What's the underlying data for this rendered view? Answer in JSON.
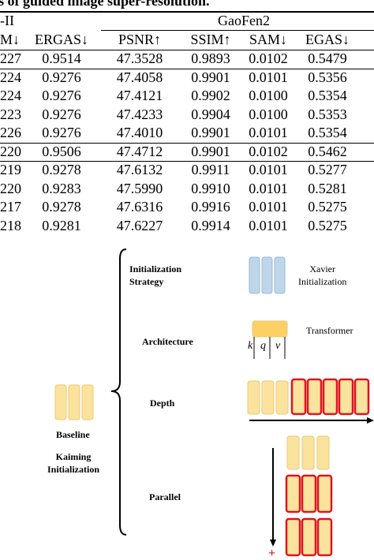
{
  "caption": "s of guided image super-resolution.",
  "table": {
    "left_group_label": "-II",
    "right_group_label": "GaoFen2",
    "headers": [
      "M↓",
      "ERGAS↓",
      "PSNR↑",
      "SSIM↑",
      "SAM↓",
      "EGAS↓"
    ],
    "groups": [
      [
        [
          "227",
          "0.9514",
          "47.3528",
          "0.9893",
          "0.0102",
          "0.5479"
        ]
      ],
      [
        [
          "224",
          "0.9276",
          "47.4058",
          "0.9901",
          "0.0101",
          "0.5356"
        ],
        [
          "224",
          "0.9276",
          "47.4121",
          "0.9902",
          "0.0100",
          "0.5354"
        ],
        [
          "223",
          "0.9276",
          "47.4233",
          "0.9904",
          "0.0100",
          "0.5353"
        ],
        [
          "226",
          "0.9276",
          "47.4010",
          "0.9901",
          "0.0101",
          "0.5354"
        ]
      ],
      [
        [
          "220",
          "0.9506",
          "47.4712",
          "0.9901",
          "0.0102",
          "0.5462"
        ]
      ],
      [
        [
          "219",
          "0.9278",
          "47.6132",
          "0.9911",
          "0.0101",
          "0.5277"
        ],
        [
          "220",
          "0.9283",
          "47.5990",
          "0.9910",
          "0.0101",
          "0.5281"
        ],
        [
          "217",
          "0.9278",
          "47.6316",
          "0.9916",
          "0.0101",
          "0.5275"
        ],
        [
          "218",
          "0.9281",
          "47.6227",
          "0.9914",
          "0.0101",
          "0.5275"
        ]
      ]
    ]
  },
  "diagram": {
    "baseline_label": "Baseline",
    "kaiming_label": "Kaiming\nInitialization",
    "categories": [
      "Initialization\nStrategy",
      "Architecture",
      "Depth",
      "Parallel"
    ],
    "xavier_label": "Xavier\nInitialization",
    "transformer_label": "Transformer",
    "qkv": [
      "k",
      "q",
      "v"
    ],
    "depth_axis_mark": "+",
    "parallel_axis_mark": "+",
    "colors": {
      "baseline_fill": "#FBE39E",
      "baseline_stroke": "#EBC874",
      "xavier_fill": "#BFD6EA",
      "xavier_stroke": "#9AB9D8",
      "transformer_fill": "#FBD166",
      "added_stroke": "#E0141C",
      "axis_plus": "#E0141C"
    }
  }
}
